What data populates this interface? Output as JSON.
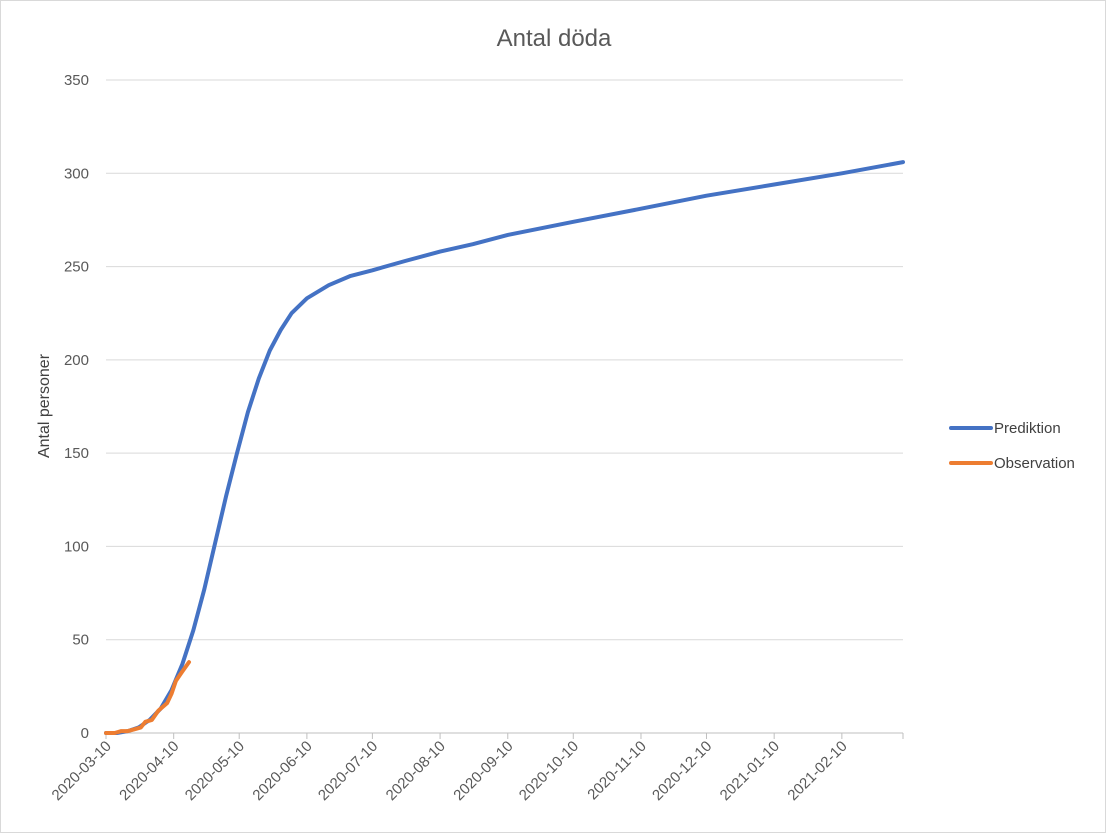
{
  "chart_data": {
    "type": "line",
    "title": "Antal döda",
    "xlabel": "",
    "ylabel": "Antal personer",
    "x_start": "2020-03-10",
    "x_end": "2021-03-10",
    "x_ticks": [
      "2020-03-10",
      "2020-04-10",
      "2020-05-10",
      "2020-06-10",
      "2020-07-10",
      "2020-08-10",
      "2020-09-10",
      "2020-10-10",
      "2020-11-10",
      "2020-12-10",
      "2021-01-10",
      "2021-02-10"
    ],
    "ylim": [
      0,
      350
    ],
    "y_ticks": [
      0,
      50,
      100,
      150,
      200,
      250,
      300,
      350
    ],
    "grid": true,
    "legend_position": "right",
    "series": [
      {
        "name": "Prediktion",
        "color": "#4472c4",
        "points": [
          [
            "2020-03-10",
            0
          ],
          [
            "2020-03-15",
            0
          ],
          [
            "2020-03-20",
            1
          ],
          [
            "2020-03-25",
            3
          ],
          [
            "2020-03-30",
            7
          ],
          [
            "2020-04-04",
            13
          ],
          [
            "2020-04-09",
            23
          ],
          [
            "2020-04-14",
            37
          ],
          [
            "2020-04-19",
            55
          ],
          [
            "2020-04-24",
            77
          ],
          [
            "2020-04-29",
            102
          ],
          [
            "2020-05-04",
            127
          ],
          [
            "2020-05-09",
            150
          ],
          [
            "2020-05-14",
            172
          ],
          [
            "2020-05-19",
            190
          ],
          [
            "2020-05-24",
            205
          ],
          [
            "2020-05-29",
            216
          ],
          [
            "2020-06-03",
            225
          ],
          [
            "2020-06-10",
            233
          ],
          [
            "2020-06-20",
            240
          ],
          [
            "2020-06-30",
            245
          ],
          [
            "2020-07-10",
            248
          ],
          [
            "2020-07-25",
            253
          ],
          [
            "2020-08-10",
            258
          ],
          [
            "2020-08-25",
            262
          ],
          [
            "2020-09-10",
            267
          ],
          [
            "2020-10-10",
            274
          ],
          [
            "2020-11-10",
            281
          ],
          [
            "2020-12-10",
            288
          ],
          [
            "2021-01-10",
            294
          ],
          [
            "2021-02-10",
            300
          ],
          [
            "2021-03-10",
            306
          ]
        ]
      },
      {
        "name": "Observation",
        "color": "#ed7d31",
        "points": [
          [
            "2020-03-10",
            0
          ],
          [
            "2020-03-14",
            0
          ],
          [
            "2020-03-17",
            1
          ],
          [
            "2020-03-20",
            1
          ],
          [
            "2020-03-23",
            2
          ],
          [
            "2020-03-26",
            3
          ],
          [
            "2020-03-28",
            6
          ],
          [
            "2020-03-31",
            7
          ],
          [
            "2020-04-03",
            12
          ],
          [
            "2020-04-07",
            16
          ],
          [
            "2020-04-09",
            21
          ],
          [
            "2020-04-11",
            28
          ],
          [
            "2020-04-14",
            33
          ],
          [
            "2020-04-17",
            38
          ]
        ]
      }
    ]
  }
}
